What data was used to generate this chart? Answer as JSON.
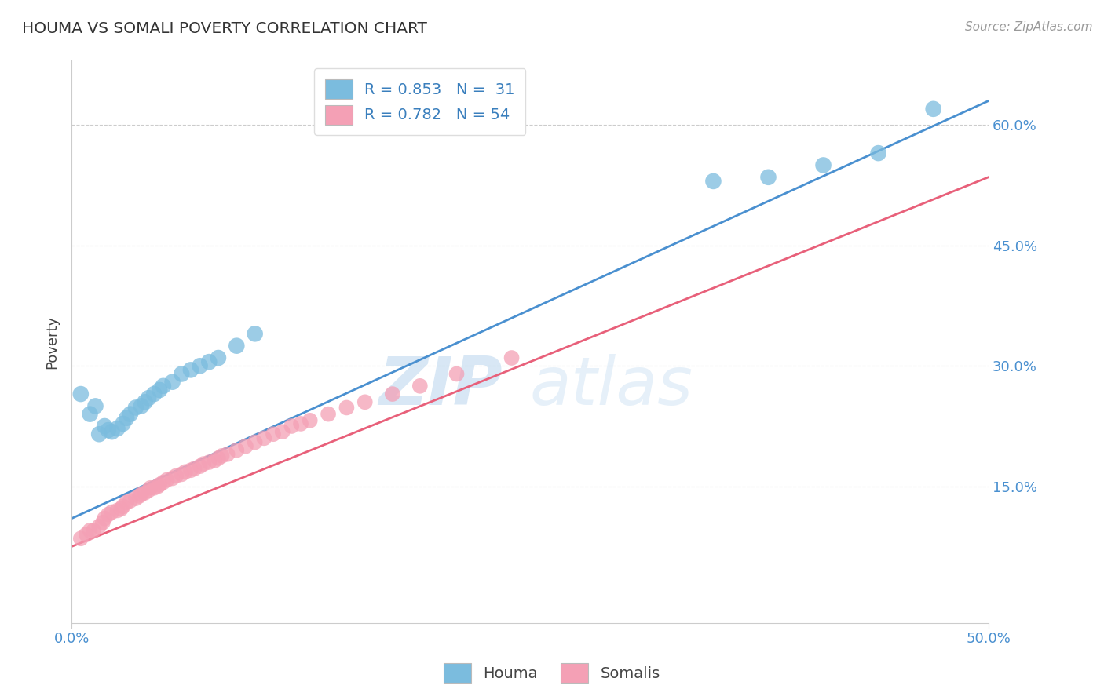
{
  "title": "HOUMA VS SOMALI POVERTY CORRELATION CHART",
  "source": "Source: ZipAtlas.com",
  "xlabel_label": "Houma",
  "ylabel_label": "Poverty",
  "xlabel_legend2": "Somalis",
  "xlim": [
    0.0,
    0.5
  ],
  "ylim": [
    -0.02,
    0.68
  ],
  "xticks": [
    0.0,
    0.5
  ],
  "yticks": [
    0.15,
    0.3,
    0.45,
    0.6
  ],
  "ytick_labels": [
    "15.0%",
    "30.0%",
    "45.0%",
    "60.0%"
  ],
  "xtick_labels": [
    "0.0%",
    "50.0%"
  ],
  "houma_color": "#7bbcde",
  "somali_color": "#f4a0b5",
  "houma_line_color": "#4a90d0",
  "somali_line_color": "#e8607a",
  "legend_R_houma": "R = 0.853",
  "legend_N_houma": "N =  31",
  "legend_R_somali": "R = 0.782",
  "legend_N_somali": "N = 54",
  "legend_color": "#3a7fbd",
  "grid_color": "#cccccc",
  "title_color": "#333333",
  "source_color": "#999999",
  "axis_label_color": "#444444",
  "tick_color": "#4a90d0",
  "houma_x": [
    0.005,
    0.01,
    0.013,
    0.015,
    0.018,
    0.02,
    0.022,
    0.025,
    0.028,
    0.03,
    0.032,
    0.035,
    0.038,
    0.04,
    0.042,
    0.045,
    0.048,
    0.05,
    0.055,
    0.06,
    0.065,
    0.07,
    0.075,
    0.08,
    0.09,
    0.1,
    0.35,
    0.38,
    0.41,
    0.44,
    0.47
  ],
  "houma_y": [
    0.265,
    0.24,
    0.25,
    0.215,
    0.225,
    0.22,
    0.218,
    0.222,
    0.228,
    0.235,
    0.24,
    0.248,
    0.25,
    0.255,
    0.26,
    0.265,
    0.27,
    0.275,
    0.28,
    0.29,
    0.295,
    0.3,
    0.305,
    0.31,
    0.325,
    0.34,
    0.53,
    0.535,
    0.55,
    0.565,
    0.62
  ],
  "somali_x": [
    0.005,
    0.008,
    0.01,
    0.012,
    0.015,
    0.017,
    0.018,
    0.02,
    0.022,
    0.025,
    0.027,
    0.028,
    0.03,
    0.032,
    0.035,
    0.037,
    0.038,
    0.04,
    0.042,
    0.043,
    0.045,
    0.047,
    0.048,
    0.05,
    0.052,
    0.055,
    0.057,
    0.06,
    0.062,
    0.065,
    0.067,
    0.07,
    0.072,
    0.075,
    0.078,
    0.08,
    0.082,
    0.085,
    0.09,
    0.095,
    0.1,
    0.105,
    0.11,
    0.115,
    0.12,
    0.125,
    0.13,
    0.14,
    0.15,
    0.16,
    0.175,
    0.19,
    0.21,
    0.24
  ],
  "somali_y": [
    0.085,
    0.09,
    0.095,
    0.095,
    0.1,
    0.105,
    0.11,
    0.115,
    0.118,
    0.12,
    0.122,
    0.125,
    0.13,
    0.132,
    0.135,
    0.138,
    0.14,
    0.142,
    0.145,
    0.148,
    0.148,
    0.15,
    0.152,
    0.155,
    0.158,
    0.16,
    0.163,
    0.165,
    0.168,
    0.17,
    0.172,
    0.175,
    0.178,
    0.18,
    0.182,
    0.185,
    0.188,
    0.19,
    0.195,
    0.2,
    0.205,
    0.21,
    0.215,
    0.218,
    0.225,
    0.228,
    0.232,
    0.24,
    0.248,
    0.255,
    0.265,
    0.275,
    0.29,
    0.31
  ],
  "houma_line_x": [
    0.0,
    0.5
  ],
  "houma_line_y": [
    0.11,
    0.63
  ],
  "somali_line_x": [
    0.0,
    0.5
  ],
  "somali_line_y": [
    0.075,
    0.535
  ],
  "watermark_zip": "ZIP",
  "watermark_atlas": "atlas",
  "background_color": "#ffffff"
}
